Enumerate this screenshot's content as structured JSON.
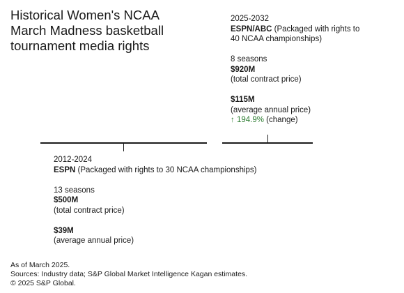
{
  "title_lines": [
    "Historical Women's NCAA",
    "March Madness basketball",
    "tournament media rights"
  ],
  "deal_2025": {
    "years": "2025-2032",
    "network": "ESPN/ABC",
    "desc_line1": "(Packaged with rights to",
    "desc_line2": "40 NCAA championships)",
    "seasons": "8 seasons",
    "total_value": "$920M",
    "total_label": "(total contract price)",
    "annual_value": "$115M",
    "annual_label": "(average annual price)",
    "change_arrow": "↑",
    "change_value": "194.9%",
    "change_label": "(change)",
    "change_color": "#2e7d32"
  },
  "deal_2012": {
    "years": "2012-2024",
    "network": "ESPN",
    "desc": "(Packaged with rights to 30 NCAA championships)",
    "seasons": "13 seasons",
    "total_value": "$500M",
    "total_label": "(total contract price)",
    "annual_value": "$39M",
    "annual_label": "(average annual price)"
  },
  "footer": {
    "as_of": "As of March 2025.",
    "sources": "Sources: Industry data; S&P Global Market Intelligence Kagan estimates.",
    "copyright": "© 2025 S&P Global."
  }
}
